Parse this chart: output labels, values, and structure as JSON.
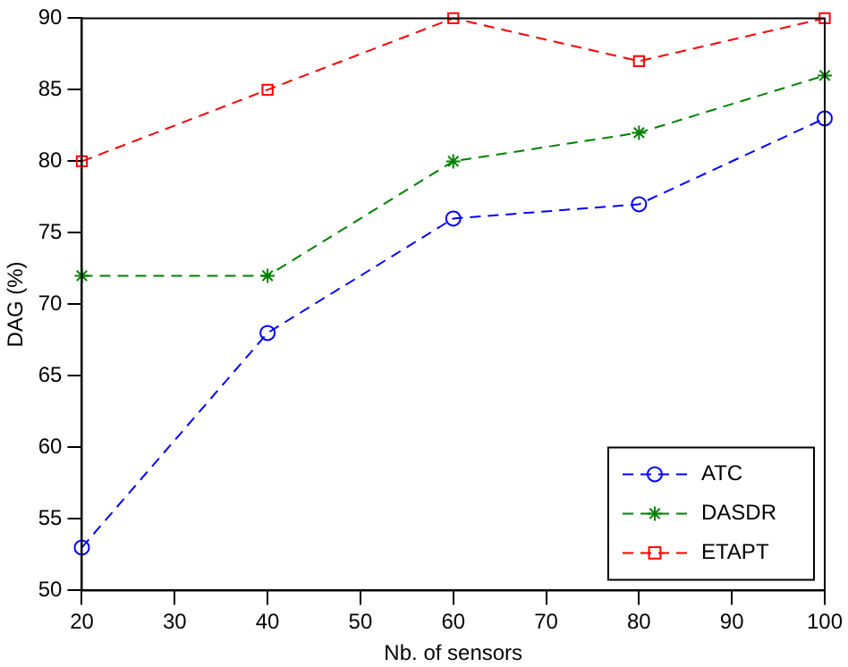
{
  "chart_data": {
    "type": "line",
    "xlabel": "Nb. of sensors",
    "ylabel": "DAG (%)",
    "x": [
      20,
      40,
      60,
      80,
      100
    ],
    "xlim": [
      20,
      100
    ],
    "xticks": [
      20,
      30,
      40,
      50,
      60,
      70,
      80,
      90,
      100
    ],
    "ylim": [
      50,
      90
    ],
    "yticks": [
      50,
      55,
      60,
      65,
      70,
      75,
      80,
      85,
      90
    ],
    "grid": false,
    "legend": "bottom right",
    "series": [
      {
        "name": "ATC",
        "color": "#0000ff",
        "values": [
          53,
          68,
          76,
          77,
          83
        ],
        "marker": "circle",
        "line_style": "dashed"
      },
      {
        "name": "DASDR",
        "color": "#008000",
        "values": [
          72,
          72,
          80,
          82,
          86
        ],
        "marker": "cross",
        "line_style": "dashed"
      },
      {
        "name": "ETAPT",
        "color": "#ff0000",
        "values": [
          80,
          85,
          90,
          87,
          90
        ],
        "marker": "square",
        "line_style": "dashed"
      }
    ]
  }
}
